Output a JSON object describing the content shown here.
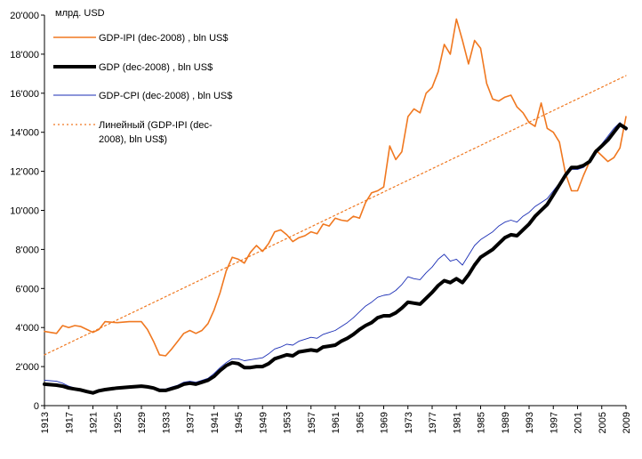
{
  "chart_data": {
    "type": "line",
    "unit_label": "млрд. USD",
    "xlim": [
      1913,
      2009
    ],
    "ylim": [
      0,
      20000
    ],
    "y_ticks": [
      0,
      2000,
      4000,
      6000,
      8000,
      10000,
      12000,
      14000,
      16000,
      18000,
      20000
    ],
    "y_tick_labels": [
      "0",
      "2'000",
      "4'000",
      "6'000",
      "8'000",
      "10'000",
      "12'000",
      "14'000",
      "16'000",
      "18'000",
      "20'000"
    ],
    "x_ticks": [
      1913,
      1917,
      1921,
      1925,
      1929,
      1933,
      1937,
      1941,
      1945,
      1949,
      1953,
      1957,
      1961,
      1965,
      1969,
      1973,
      1977,
      1981,
      1985,
      1989,
      1993,
      1997,
      2001,
      2005,
      2009
    ],
    "x_tick_labels": [
      "1913",
      "1917",
      "1921",
      "1925",
      "1929",
      "1933",
      "1937",
      "1941",
      "1945",
      "1949",
      "1953",
      "1957",
      "1961",
      "1965",
      "1969",
      "1973",
      "1977",
      "1981",
      "1985",
      "1989",
      "1993",
      "1997",
      "2001",
      "2005",
      "2009"
    ],
    "grid": false,
    "legend_position": "top-left",
    "series": [
      {
        "name": "GDP-IPI (dec-2008) , bln US$",
        "color": "#F07820",
        "style": "solid",
        "x": [
          1913,
          1915,
          1916,
          1917,
          1918,
          1919,
          1920,
          1921,
          1922,
          1923,
          1925,
          1927,
          1929,
          1930,
          1931,
          1932,
          1933,
          1934,
          1935,
          1936,
          1937,
          1938,
          1939,
          1940,
          1941,
          1942,
          1943,
          1944,
          1945,
          1946,
          1947,
          1948,
          1949,
          1950,
          1951,
          1952,
          1953,
          1954,
          1955,
          1956,
          1957,
          1958,
          1959,
          1960,
          1961,
          1962,
          1963,
          1964,
          1965,
          1966,
          1967,
          1968,
          1969,
          1970,
          1971,
          1972,
          1973,
          1974,
          1975,
          1976,
          1977,
          1978,
          1979,
          1980,
          1981,
          1982,
          1983,
          1984,
          1985,
          1986,
          1987,
          1988,
          1989,
          1990,
          1991,
          1992,
          1993,
          1994,
          1995,
          1996,
          1997,
          1998,
          1999,
          2000,
          2001,
          2002,
          2003,
          2004,
          2005,
          2006,
          2007,
          2008,
          2009
        ],
        "values": [
          3800,
          3700,
          4100,
          4000,
          4100,
          4050,
          3900,
          3750,
          3900,
          4300,
          4250,
          4300,
          4300,
          3900,
          3300,
          2600,
          2550,
          2900,
          3300,
          3700,
          3850,
          3700,
          3850,
          4200,
          4900,
          5800,
          6900,
          7600,
          7500,
          7300,
          7850,
          8200,
          7900,
          8300,
          8900,
          9000,
          8750,
          8400,
          8600,
          8700,
          8900,
          8800,
          9300,
          9200,
          9600,
          9500,
          9450,
          9700,
          9600,
          10400,
          10900,
          11000,
          11200,
          13300,
          12600,
          13000,
          14800,
          15200,
          15000,
          16000,
          16300,
          17100,
          18500,
          18000,
          19800,
          18700,
          17500,
          18700,
          18300,
          16500,
          15700,
          15600,
          15800,
          15900,
          15300,
          15000,
          14500,
          14300,
          15500,
          14200,
          14000,
          13500,
          11900,
          11000,
          11000,
          11800,
          12500,
          13100,
          12800,
          12500,
          12700,
          13200,
          14800
        ]
      },
      {
        "name": "GDP (dec-2008) , bln US$",
        "color": "#000000",
        "style": "solid-thick",
        "x": [
          1913,
          1915,
          1916,
          1917,
          1918,
          1919,
          1920,
          1921,
          1922,
          1923,
          1925,
          1927,
          1929,
          1930,
          1931,
          1932,
          1933,
          1934,
          1935,
          1936,
          1937,
          1938,
          1939,
          1940,
          1941,
          1942,
          1943,
          1944,
          1945,
          1946,
          1947,
          1948,
          1949,
          1950,
          1951,
          1952,
          1953,
          1954,
          1955,
          1956,
          1957,
          1958,
          1959,
          1960,
          1961,
          1962,
          1963,
          1964,
          1965,
          1966,
          1967,
          1968,
          1969,
          1970,
          1971,
          1972,
          1973,
          1974,
          1975,
          1976,
          1977,
          1978,
          1979,
          1980,
          1981,
          1982,
          1983,
          1984,
          1985,
          1986,
          1987,
          1988,
          1989,
          1990,
          1991,
          1992,
          1993,
          1994,
          1995,
          1996,
          1997,
          1998,
          1999,
          2000,
          2001,
          2002,
          2003,
          2004,
          2005,
          2006,
          2007,
          2008,
          2009
        ],
        "values": [
          1100,
          1050,
          1000,
          900,
          850,
          800,
          720,
          650,
          760,
          820,
          900,
          950,
          1000,
          960,
          900,
          780,
          780,
          870,
          960,
          1100,
          1150,
          1100,
          1200,
          1300,
          1500,
          1800,
          2050,
          2200,
          2150,
          1950,
          1950,
          2000,
          2000,
          2150,
          2400,
          2500,
          2600,
          2550,
          2750,
          2800,
          2850,
          2800,
          3000,
          3050,
          3100,
          3300,
          3450,
          3650,
          3900,
          4100,
          4250,
          4500,
          4600,
          4600,
          4750,
          5000,
          5300,
          5250,
          5200,
          5500,
          5800,
          6150,
          6400,
          6300,
          6500,
          6300,
          6700,
          7200,
          7600,
          7800,
          8000,
          8300,
          8600,
          8750,
          8700,
          9000,
          9300,
          9700,
          10000,
          10300,
          10800,
          11300,
          11800,
          12200,
          12200,
          12300,
          12500,
          13000,
          13300,
          13600,
          14000,
          14400,
          14200
        ]
      },
      {
        "name": "GDP-CPI (dec-2008) , bln US$",
        "color": "#1A2DB5",
        "style": "solid-thin",
        "x": [
          1913,
          1915,
          1916,
          1917,
          1918,
          1919,
          1920,
          1921,
          1922,
          1923,
          1925,
          1927,
          1929,
          1930,
          1931,
          1932,
          1933,
          1934,
          1935,
          1936,
          1937,
          1938,
          1939,
          1940,
          1941,
          1942,
          1943,
          1944,
          1945,
          1946,
          1947,
          1948,
          1949,
          1950,
          1951,
          1952,
          1953,
          1954,
          1955,
          1956,
          1957,
          1958,
          1959,
          1960,
          1961,
          1962,
          1963,
          1964,
          1965,
          1966,
          1967,
          1968,
          1969,
          1970,
          1971,
          1972,
          1973,
          1974,
          1975,
          1976,
          1977,
          1978,
          1979,
          1980,
          1981,
          1982,
          1983,
          1984,
          1985,
          1986,
          1987,
          1988,
          1989,
          1990,
          1991,
          1992,
          1993,
          1994,
          1995,
          1996,
          1997,
          1998,
          1999,
          2000,
          2001,
          2002,
          2003,
          2004,
          2005,
          2006,
          2007,
          2008,
          2009
        ],
        "values": [
          1300,
          1250,
          1150,
          1000,
          900,
          850,
          780,
          700,
          820,
          880,
          950,
          1000,
          1050,
          1000,
          950,
          850,
          850,
          950,
          1050,
          1200,
          1250,
          1200,
          1300,
          1400,
          1650,
          1950,
          2200,
          2400,
          2400,
          2300,
          2350,
          2400,
          2450,
          2650,
          2900,
          3000,
          3150,
          3100,
          3300,
          3400,
          3500,
          3450,
          3650,
          3750,
          3850,
          4050,
          4250,
          4500,
          4800,
          5100,
          5300,
          5550,
          5650,
          5700,
          5900,
          6200,
          6600,
          6500,
          6450,
          6800,
          7100,
          7500,
          7750,
          7400,
          7500,
          7200,
          7700,
          8200,
          8500,
          8700,
          8900,
          9200,
          9400,
          9500,
          9400,
          9700,
          9900,
          10200,
          10400,
          10600,
          11000,
          11400,
          11800,
          12100,
          12100,
          12200,
          12500,
          13000,
          13400,
          13800,
          14200,
          14500,
          14100
        ]
      },
      {
        "name": "Линейный (GDP-IPI (dec-2008), bln US$)",
        "color": "#F07820",
        "style": "dotted",
        "x": [
          1913,
          2009
        ],
        "values": [
          2600,
          16900
        ]
      }
    ]
  }
}
